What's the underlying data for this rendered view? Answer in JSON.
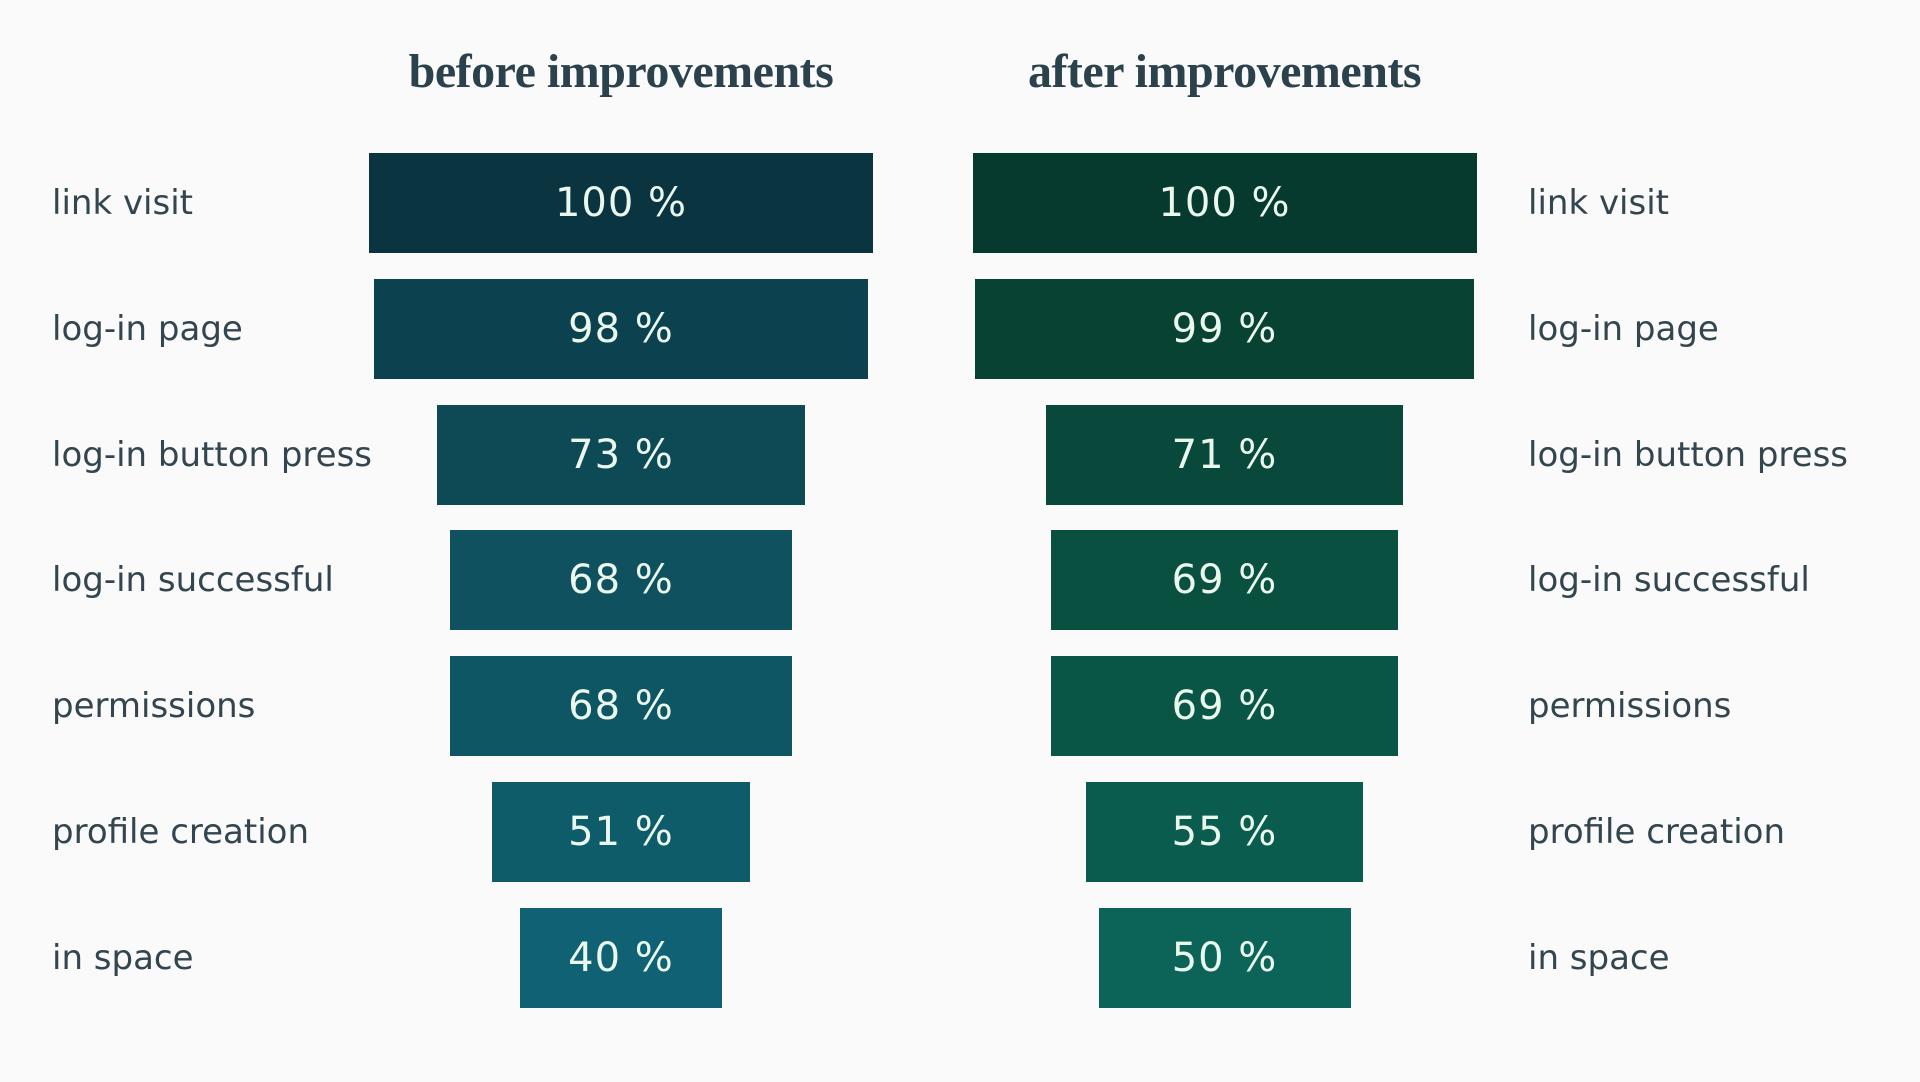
{
  "page": {
    "background": "#fafafa"
  },
  "chart_data": {
    "type": "bar",
    "subtype": "funnel-comparison",
    "orientation": "horizontal",
    "unit": "%",
    "grid": false,
    "legend_position": "none",
    "axis_max": 100,
    "categories": [
      "link visit",
      "log-in page",
      "log-in button press",
      "log-in successful",
      "permissions",
      "profile creation",
      "in space"
    ],
    "series": [
      {
        "name": "before improvements",
        "values": [
          100,
          98,
          73,
          68,
          68,
          51,
          40
        ],
        "labels": [
          "100 %",
          "98 %",
          "73 %",
          "68 %",
          "68 %",
          "51 %",
          "40 %"
        ],
        "bar_colors": [
          "#0a3540",
          "#0c4250",
          "#0e4956",
          "#0f515f",
          "#0e5664",
          "#0e5b6a",
          "#0f6173"
        ]
      },
      {
        "name": "after improvements",
        "values": [
          100,
          99,
          71,
          69,
          69,
          55,
          50
        ],
        "labels": [
          "100 %",
          "99 %",
          "71 %",
          "69 %",
          "69 %",
          "55 %",
          "50 %"
        ],
        "bar_colors": [
          "#063a2e",
          "#084233",
          "#08493b",
          "#095040",
          "#0a5646",
          "#0a5c4e",
          "#0c6458"
        ]
      }
    ],
    "title_color": "#2b424d",
    "category_text_color": "#33454e",
    "value_text_color": "#e9f7ec"
  },
  "layout_note": ""
}
